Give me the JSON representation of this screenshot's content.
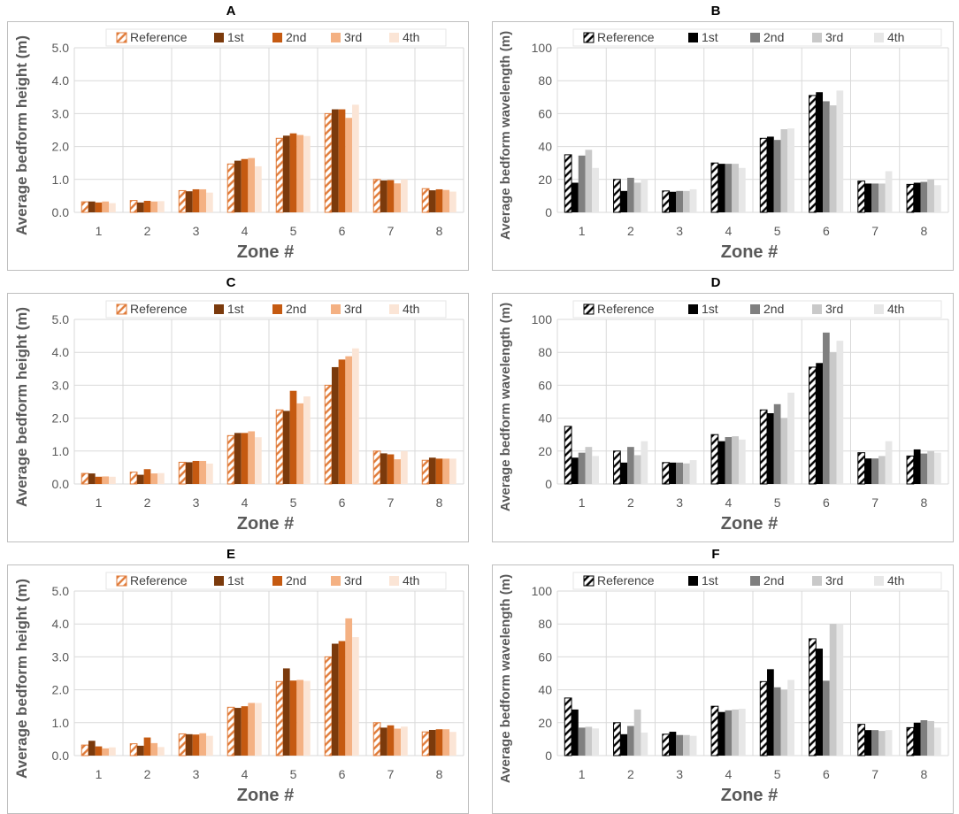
{
  "colors": {
    "height_series": [
      "#e07b39",
      "#7b3a0c",
      "#c55a11",
      "#f4b183",
      "#fbe5d6"
    ],
    "wavelength_series": [
      "#000000",
      "#000000",
      "#7f7f7f",
      "#c9c9c9",
      "#e7e7e7"
    ],
    "hatch_height": "#e07b39",
    "hatch_wavelength": "#000000",
    "grid": "#d9d9d9",
    "axis_text": "#595959"
  },
  "chart_data": [
    {
      "panel": "A",
      "type": "bar",
      "categories": [
        "1",
        "2",
        "3",
        "4",
        "5",
        "6",
        "7",
        "8"
      ],
      "ylabel": "Average bedform height (m)",
      "xlabel": "Zone #",
      "ylim": [
        0,
        5
      ],
      "yticks": [
        "0.0",
        "1.0",
        "2.0",
        "3.0",
        "4.0",
        "5.0"
      ],
      "series": [
        {
          "name": "Reference",
          "values": [
            0.32,
            0.36,
            0.66,
            1.47,
            2.25,
            3.0,
            1.0,
            0.72
          ]
        },
        {
          "name": "1st",
          "values": [
            0.33,
            0.3,
            0.64,
            1.57,
            2.33,
            3.13,
            0.97,
            0.67
          ]
        },
        {
          "name": "2nd",
          "values": [
            0.3,
            0.35,
            0.7,
            1.62,
            2.4,
            3.13,
            0.98,
            0.7
          ]
        },
        {
          "name": "3rd",
          "values": [
            0.33,
            0.33,
            0.7,
            1.65,
            2.35,
            2.87,
            0.88,
            0.68
          ]
        },
        {
          "name": "4th",
          "values": [
            0.28,
            0.34,
            0.6,
            1.4,
            2.32,
            3.27,
            1.0,
            0.63
          ]
        }
      ]
    },
    {
      "panel": "B",
      "type": "bar",
      "categories": [
        "1",
        "2",
        "3",
        "4",
        "5",
        "6",
        "7",
        "8"
      ],
      "ylabel": "Average bedform wavelength (m)",
      "xlabel": "Zone #",
      "ylim": [
        0,
        100
      ],
      "yticks": [
        "0",
        "20",
        "40",
        "60",
        "80",
        "100"
      ],
      "series": [
        {
          "name": "Reference",
          "values": [
            35,
            20,
            13,
            30,
            45,
            71,
            19,
            17
          ]
        },
        {
          "name": "1st",
          "values": [
            18,
            13,
            12.5,
            29.5,
            46,
            73,
            17.5,
            18
          ]
        },
        {
          "name": "2nd",
          "values": [
            34.5,
            21,
            13,
            29.5,
            44,
            67.5,
            17.5,
            18.5
          ]
        },
        {
          "name": "3rd",
          "values": [
            38,
            18,
            13,
            29.5,
            50.5,
            65,
            17.5,
            20
          ]
        },
        {
          "name": "4th",
          "values": [
            27,
            20,
            14,
            27,
            51,
            74,
            25,
            16.5
          ]
        }
      ]
    },
    {
      "panel": "C",
      "type": "bar",
      "categories": [
        "1",
        "2",
        "3",
        "4",
        "5",
        "6",
        "7",
        "8"
      ],
      "ylabel": "Average bedform height (m)",
      "xlabel": "Zone #",
      "ylim": [
        0,
        5
      ],
      "yticks": [
        "0.0",
        "1.0",
        "2.0",
        "3.0",
        "4.0",
        "5.0"
      ],
      "series": [
        {
          "name": "Reference",
          "values": [
            0.32,
            0.36,
            0.66,
            1.47,
            2.25,
            3.0,
            1.0,
            0.72
          ]
        },
        {
          "name": "1st",
          "values": [
            0.32,
            0.28,
            0.66,
            1.55,
            2.22,
            3.55,
            0.93,
            0.8
          ]
        },
        {
          "name": "2nd",
          "values": [
            0.22,
            0.45,
            0.7,
            1.55,
            2.83,
            3.78,
            0.9,
            0.77
          ]
        },
        {
          "name": "3rd",
          "values": [
            0.23,
            0.32,
            0.7,
            1.6,
            2.45,
            3.88,
            0.75,
            0.77
          ]
        },
        {
          "name": "4th",
          "values": [
            0.22,
            0.33,
            0.62,
            1.42,
            2.66,
            4.12,
            1.0,
            0.77
          ]
        }
      ]
    },
    {
      "panel": "D",
      "type": "bar",
      "categories": [
        "1",
        "2",
        "3",
        "4",
        "5",
        "6",
        "7",
        "8"
      ],
      "ylabel": "Average bedform wavelength (m)",
      "xlabel": "Zone #",
      "ylim": [
        0,
        100
      ],
      "yticks": [
        "0",
        "20",
        "40",
        "60",
        "80",
        "100"
      ],
      "series": [
        {
          "name": "Reference",
          "values": [
            35,
            20,
            13,
            30,
            45,
            71,
            19,
            17
          ]
        },
        {
          "name": "1st",
          "values": [
            16,
            13,
            13,
            26,
            43,
            73.5,
            15.5,
            21
          ]
        },
        {
          "name": "2nd",
          "values": [
            19,
            22.5,
            13,
            28.5,
            48.5,
            92,
            15.5,
            18.5
          ]
        },
        {
          "name": "3rd",
          "values": [
            22.5,
            17.5,
            12.5,
            29,
            40,
            80,
            17,
            20
          ]
        },
        {
          "name": "4th",
          "values": [
            17,
            26,
            14.5,
            27,
            55.5,
            87,
            26,
            19
          ]
        }
      ]
    },
    {
      "panel": "E",
      "type": "bar",
      "categories": [
        "1",
        "2",
        "3",
        "4",
        "5",
        "6",
        "7",
        "8"
      ],
      "ylabel": "Average bedform height (m)",
      "xlabel": "Zone #",
      "ylim": [
        0,
        5
      ],
      "yticks": [
        "0.0",
        "1.0",
        "2.0",
        "3.0",
        "4.0",
        "5.0"
      ],
      "series": [
        {
          "name": "Reference",
          "values": [
            0.32,
            0.36,
            0.66,
            1.47,
            2.25,
            3.0,
            1.0,
            0.72
          ]
        },
        {
          "name": "1st",
          "values": [
            0.45,
            0.3,
            0.65,
            1.45,
            2.65,
            3.4,
            0.85,
            0.78
          ]
        },
        {
          "name": "2nd",
          "values": [
            0.28,
            0.55,
            0.64,
            1.5,
            2.28,
            3.48,
            0.92,
            0.8
          ]
        },
        {
          "name": "3rd",
          "values": [
            0.22,
            0.38,
            0.68,
            1.6,
            2.3,
            4.17,
            0.82,
            0.8
          ]
        },
        {
          "name": "4th",
          "values": [
            0.25,
            0.26,
            0.6,
            1.6,
            2.27,
            3.6,
            0.88,
            0.72
          ]
        }
      ]
    },
    {
      "panel": "F",
      "type": "bar",
      "categories": [
        "1",
        "2",
        "3",
        "4",
        "5",
        "6",
        "7",
        "8"
      ],
      "ylabel": "Average bedform wavelength (m)",
      "xlabel": "Zone #",
      "ylim": [
        0,
        100
      ],
      "yticks": [
        "0",
        "20",
        "40",
        "60",
        "80",
        "100"
      ],
      "series": [
        {
          "name": "Reference",
          "values": [
            35,
            20,
            13,
            30,
            45,
            71,
            19,
            17
          ]
        },
        {
          "name": "1st",
          "values": [
            28,
            13,
            14.5,
            26.5,
            52.5,
            65,
            15.5,
            20
          ]
        },
        {
          "name": "2nd",
          "values": [
            17,
            18,
            12.5,
            27.5,
            41.5,
            45.5,
            15.5,
            21.5
          ]
        },
        {
          "name": "3rd",
          "values": [
            17.5,
            28,
            12.5,
            28,
            40,
            80,
            15,
            21
          ]
        },
        {
          "name": "4th",
          "values": [
            16.5,
            14,
            12,
            28.5,
            46,
            80,
            15.5,
            17
          ]
        }
      ]
    }
  ]
}
